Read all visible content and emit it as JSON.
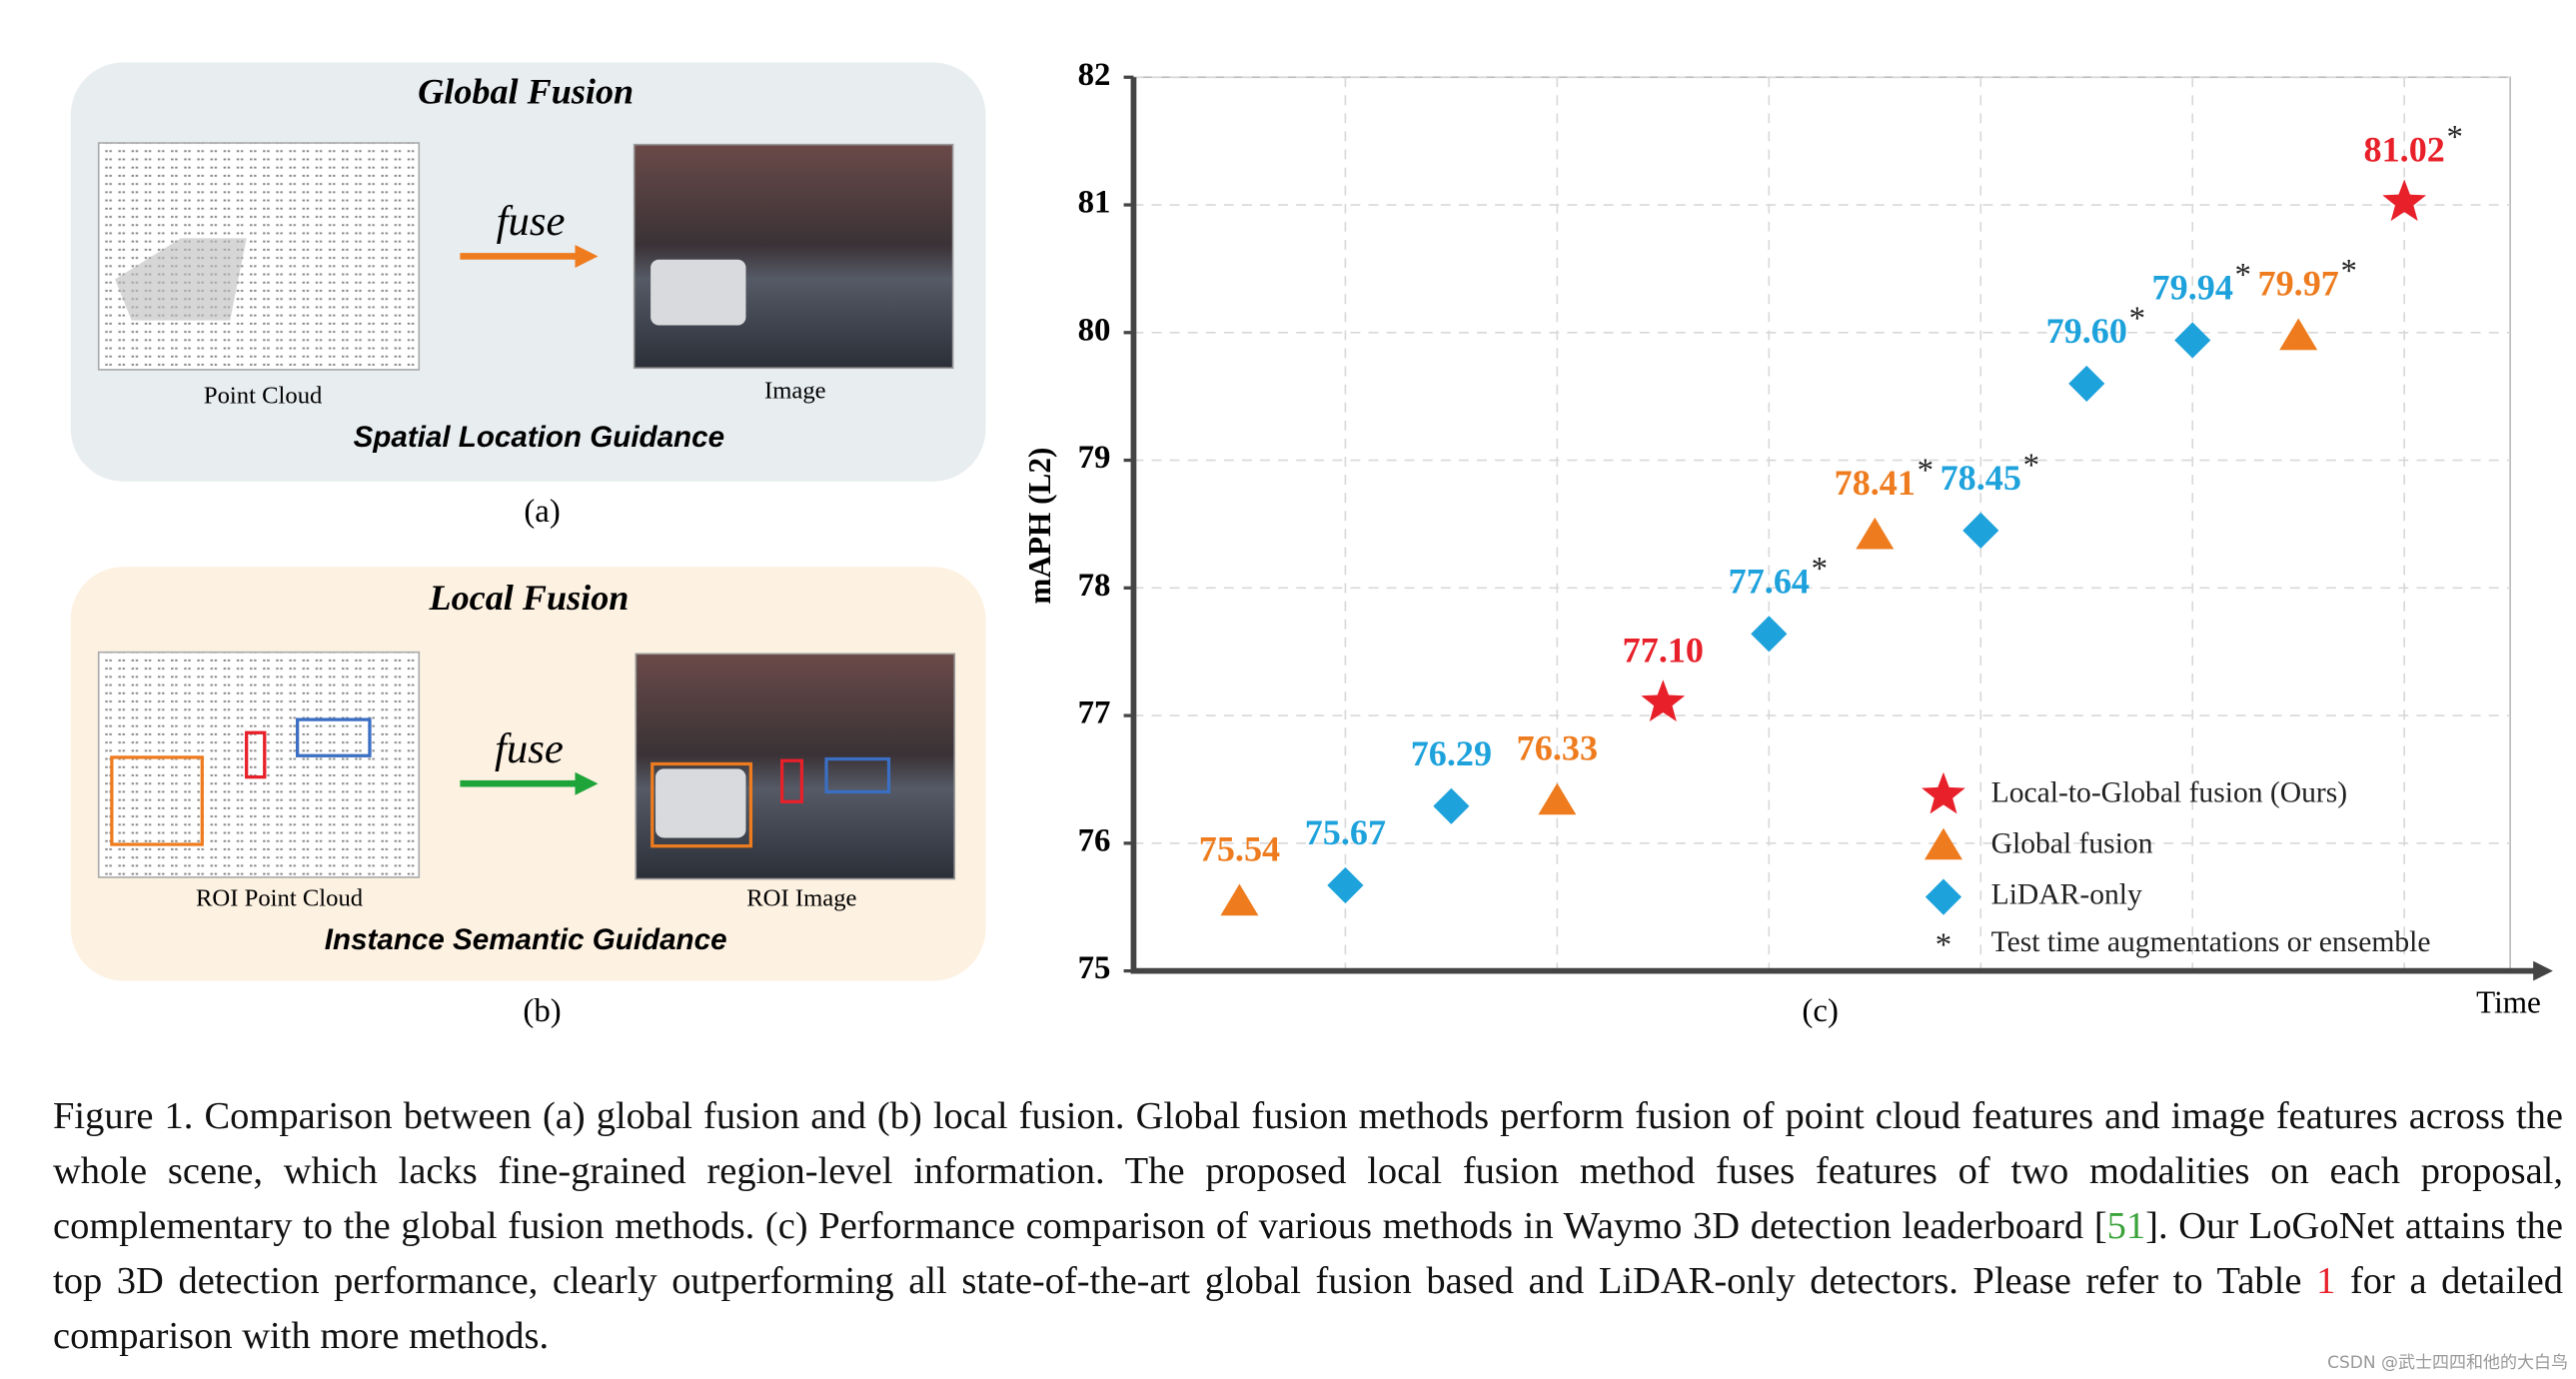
{
  "panel_a": {
    "title": "Global Fusion",
    "arrow_label": "fuse",
    "left_label": "Point Cloud",
    "right_label": "Image",
    "guidance": "Spatial Location Guidance",
    "caption": "(a)"
  },
  "panel_b": {
    "title": "Local Fusion",
    "arrow_label": "fuse",
    "left_label": "ROI Point Cloud",
    "right_label": "ROI Image",
    "guidance": "Instance Semantic Guidance",
    "caption": "(b)"
  },
  "chart_data": {
    "type": "scatter",
    "panel_label": "(c)",
    "y_label": "mAPH (L2)",
    "x_label": "Time",
    "ylim": [
      75,
      82
    ],
    "yticks": [
      75,
      76,
      77,
      78,
      79,
      80,
      81,
      82
    ],
    "xlim": [
      0,
      13
    ],
    "xgrid": [
      2,
      4,
      6,
      8,
      10,
      12
    ],
    "grid": true,
    "tta_marker": "*",
    "tta_label": "Test time augmentations or ensemble",
    "series": [
      {
        "name": "Local-to-Global fusion (Ours)",
        "color": "#e8202a",
        "marker": "star",
        "x": [
          5,
          12
        ],
        "values": [
          77.1,
          81.02
        ],
        "value_labels": [
          "77.10",
          "81.02"
        ],
        "tta": [
          false,
          true
        ]
      },
      {
        "name": "Global fusion",
        "color": "#ee7c1f",
        "marker": "triangle",
        "x": [
          1,
          4,
          7,
          11
        ],
        "values": [
          75.54,
          76.33,
          78.41,
          79.97
        ],
        "value_labels": [
          "75.54",
          "76.33",
          "78.41",
          "79.97"
        ],
        "tta": [
          false,
          false,
          true,
          true
        ]
      },
      {
        "name": "LiDAR-only",
        "color": "#1ea2dc",
        "marker": "diamond",
        "x": [
          2,
          3,
          6,
          8,
          9,
          10
        ],
        "values": [
          75.67,
          76.29,
          77.64,
          78.45,
          79.6,
          79.94
        ],
        "value_labels": [
          "75.67",
          "76.29",
          "77.64",
          "78.45",
          "79.60",
          "79.94"
        ],
        "tta": [
          false,
          false,
          true,
          true,
          true,
          true
        ]
      }
    ]
  },
  "caption": {
    "part1": "Figure 1. Comparison between (a) global fusion and (b) local fusion. Global fusion methods perform fusion of point cloud features and image features across the whole scene, which lacks fine-grained region-level information. The proposed local fusion method fuses features of two modalities on each proposal, complementary to the global fusion methods. (c) Performance comparison of various methods in Waymo 3D detection leaderboard [",
    "ref": "51",
    "part2": "]. Our LoGoNet  attains the top 3D detection performance, clearly outperforming all state-of-the-art global fusion based and LiDAR-only detectors. Please refer to Table ",
    "table_ref": "1",
    "part3": " for a detailed comparison with more methods."
  },
  "watermark": "CSDN @武士四四和他的大白鸟"
}
